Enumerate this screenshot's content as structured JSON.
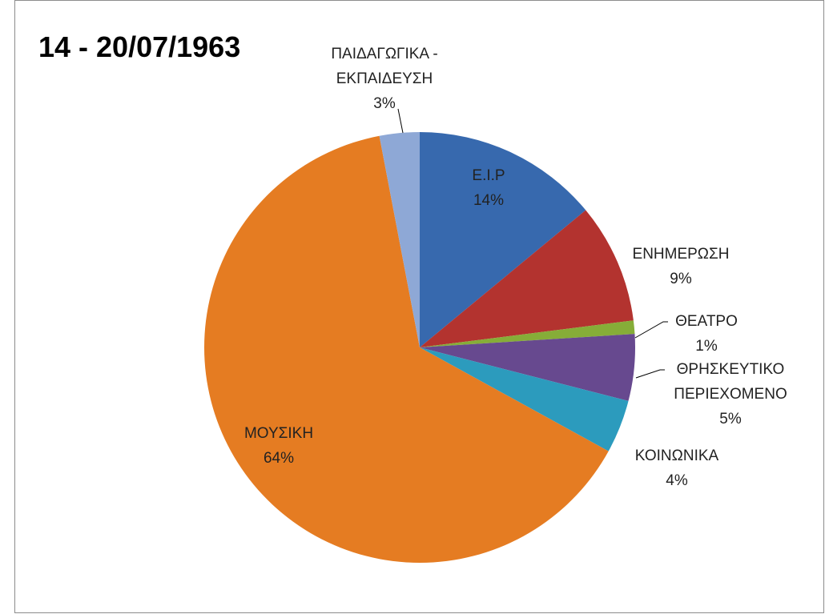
{
  "chart_data": {
    "type": "pie",
    "title": "14 - 20/07/1963",
    "categories": [
      "Ε.Ι.Ρ",
      "ΕΝΗΜΕΡΩΣΗ",
      "ΘΕΑΤΡΟ",
      "ΘΡΗΣΚΕΥΤΙΚΟ ΠΕΡΙΕΧΟΜΕΝΟ",
      "ΚΟΙΝΩΝΙΚΑ",
      "ΜΟΥΣΙΚΗ",
      "ΠΑΙΔΑΓΩΓΙΚΑ - ΕΚΠΑΙΔΕΥΣΗ"
    ],
    "values": [
      14,
      9,
      1,
      5,
      4,
      64,
      3
    ],
    "value_labels": [
      "14%",
      "9%",
      "1%",
      "5%",
      "4%",
      "64%",
      "3%"
    ],
    "colors": [
      "#3769ae",
      "#b3332f",
      "#86ad38",
      "#67498f",
      "#2c9bbd",
      "#e57c22",
      "#8ea8d6"
    ]
  }
}
